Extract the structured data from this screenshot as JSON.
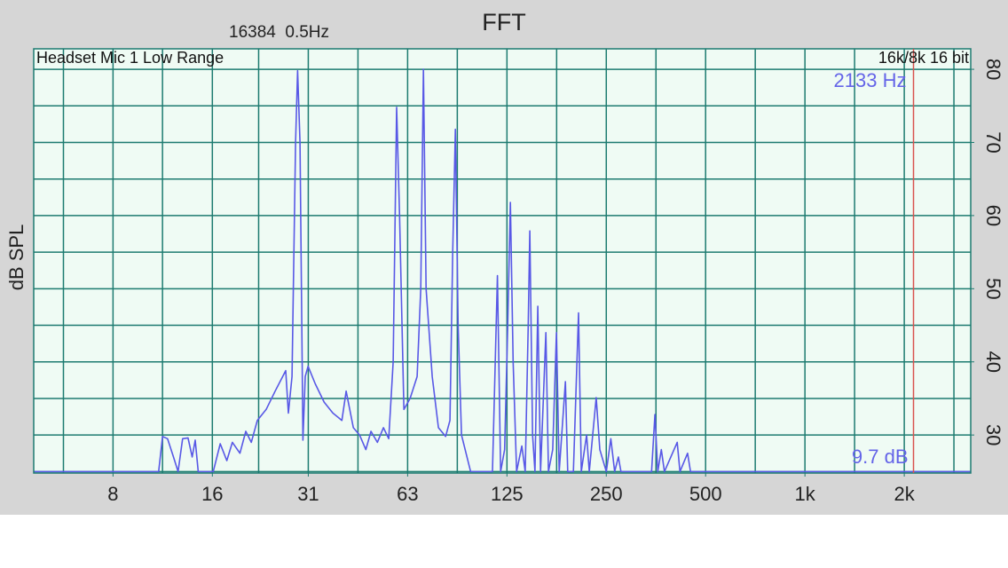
{
  "chart_data": {
    "type": "line",
    "title": "FFT",
    "subtitle": "16384  0.5Hz",
    "source_label": "Headset Mic 1 Low Range",
    "format_label": "16k/8k 16 bit",
    "y_label": "dB SPL",
    "x_scale": "log",
    "grid": true,
    "x": [
      4.6,
      11.0,
      11.3,
      11.7,
      12.2,
      12.6,
      13.0,
      13.5,
      13.9,
      14.2,
      14.5,
      16.1,
      16.9,
      17.7,
      18.4,
      19.4,
      20.2,
      21.0,
      21.9,
      23.3,
      24.8,
      26.7,
      27.2,
      27.9,
      28.6,
      29.0,
      29.5,
      30.1,
      30.6,
      31.2,
      32.8,
      34.9,
      37.1,
      39.5,
      40.7,
      42.8,
      44.7,
      46.7,
      48.4,
      50.6,
      52.8,
      54.8,
      56.5,
      57.9,
      59.1,
      60.9,
      63.6,
      66.8,
      68.5,
      69.8,
      71.1,
      74.2,
      77.5,
      81.5,
      84.0,
      85.6,
      87.2,
      88.9,
      91.0,
      97.0,
      113,
      117,
      119.6,
      123,
      125.7,
      128,
      130.5,
      133.7,
      138.7,
      142,
      145,
      146.6,
      149.5,
      152,
      155,
      158,
      164,
      167,
      172,
      176.6,
      180,
      188,
      191,
      198.7,
      206,
      210,
      218,
      222,
      233,
      239,
      250,
      258,
      265,
      272,
      277,
      343,
      351,
      358,
      367,
      375,
      410,
      418,
      441,
      450,
      3175
    ],
    "series": [
      {
        "color": "#5858e6",
        "values": [
          25,
          25,
          29.8,
          29.5,
          27,
          25,
          29.5,
          29.6,
          27,
          29.3,
          25,
          25,
          28.8,
          26.5,
          29,
          27.5,
          30.5,
          29,
          32,
          33.5,
          36,
          38.8,
          33,
          38,
          70,
          79.8,
          70,
          29.3,
          38,
          39.4,
          37,
          34.5,
          33,
          32,
          36,
          31,
          30,
          28,
          30.5,
          29,
          31,
          29.5,
          40,
          74.8,
          60,
          33.5,
          35,
          38,
          50,
          80,
          50,
          38,
          31,
          29.8,
          32,
          55,
          71.8,
          45,
          30,
          25,
          25,
          51.8,
          25,
          28,
          45,
          61.8,
          40,
          25,
          28.5,
          25,
          45,
          57.9,
          30,
          25,
          47.6,
          25,
          44,
          25,
          28,
          44,
          25,
          37.3,
          25,
          25,
          46.7,
          25,
          30,
          25,
          35.1,
          28,
          25,
          29.5,
          25,
          27,
          25,
          25,
          32.8,
          25,
          28,
          25,
          29,
          25,
          27.5,
          25,
          25
        ]
      }
    ],
    "xlim": [
      4.6,
      3180
    ],
    "ylim": [
      24.8,
      82.8
    ],
    "xticks": [
      8,
      16,
      {
        "value": 31.25,
        "label": "31"
      },
      {
        "value": 62.5,
        "label": "63"
      },
      125,
      250,
      500,
      {
        "value": 1000,
        "label": "1k"
      },
      {
        "value": 2000,
        "label": "2k"
      }
    ],
    "xgrid": [
      5.66,
      8,
      11.3,
      16,
      22.1,
      31.25,
      44.2,
      62.5,
      88.4,
      125,
      176.8,
      250,
      353.6,
      500,
      707,
      1000,
      1414,
      2000,
      2828
    ],
    "yticks": [
      30,
      40,
      50,
      60,
      70,
      80
    ],
    "ygrid": [
      25,
      30,
      35,
      40,
      45,
      50,
      55,
      60,
      65,
      70,
      75,
      80
    ],
    "cursor": {
      "value": 2133,
      "label": "2133 Hz",
      "color": "#d9534f"
    },
    "cursor_level": "9.7 dB"
  }
}
